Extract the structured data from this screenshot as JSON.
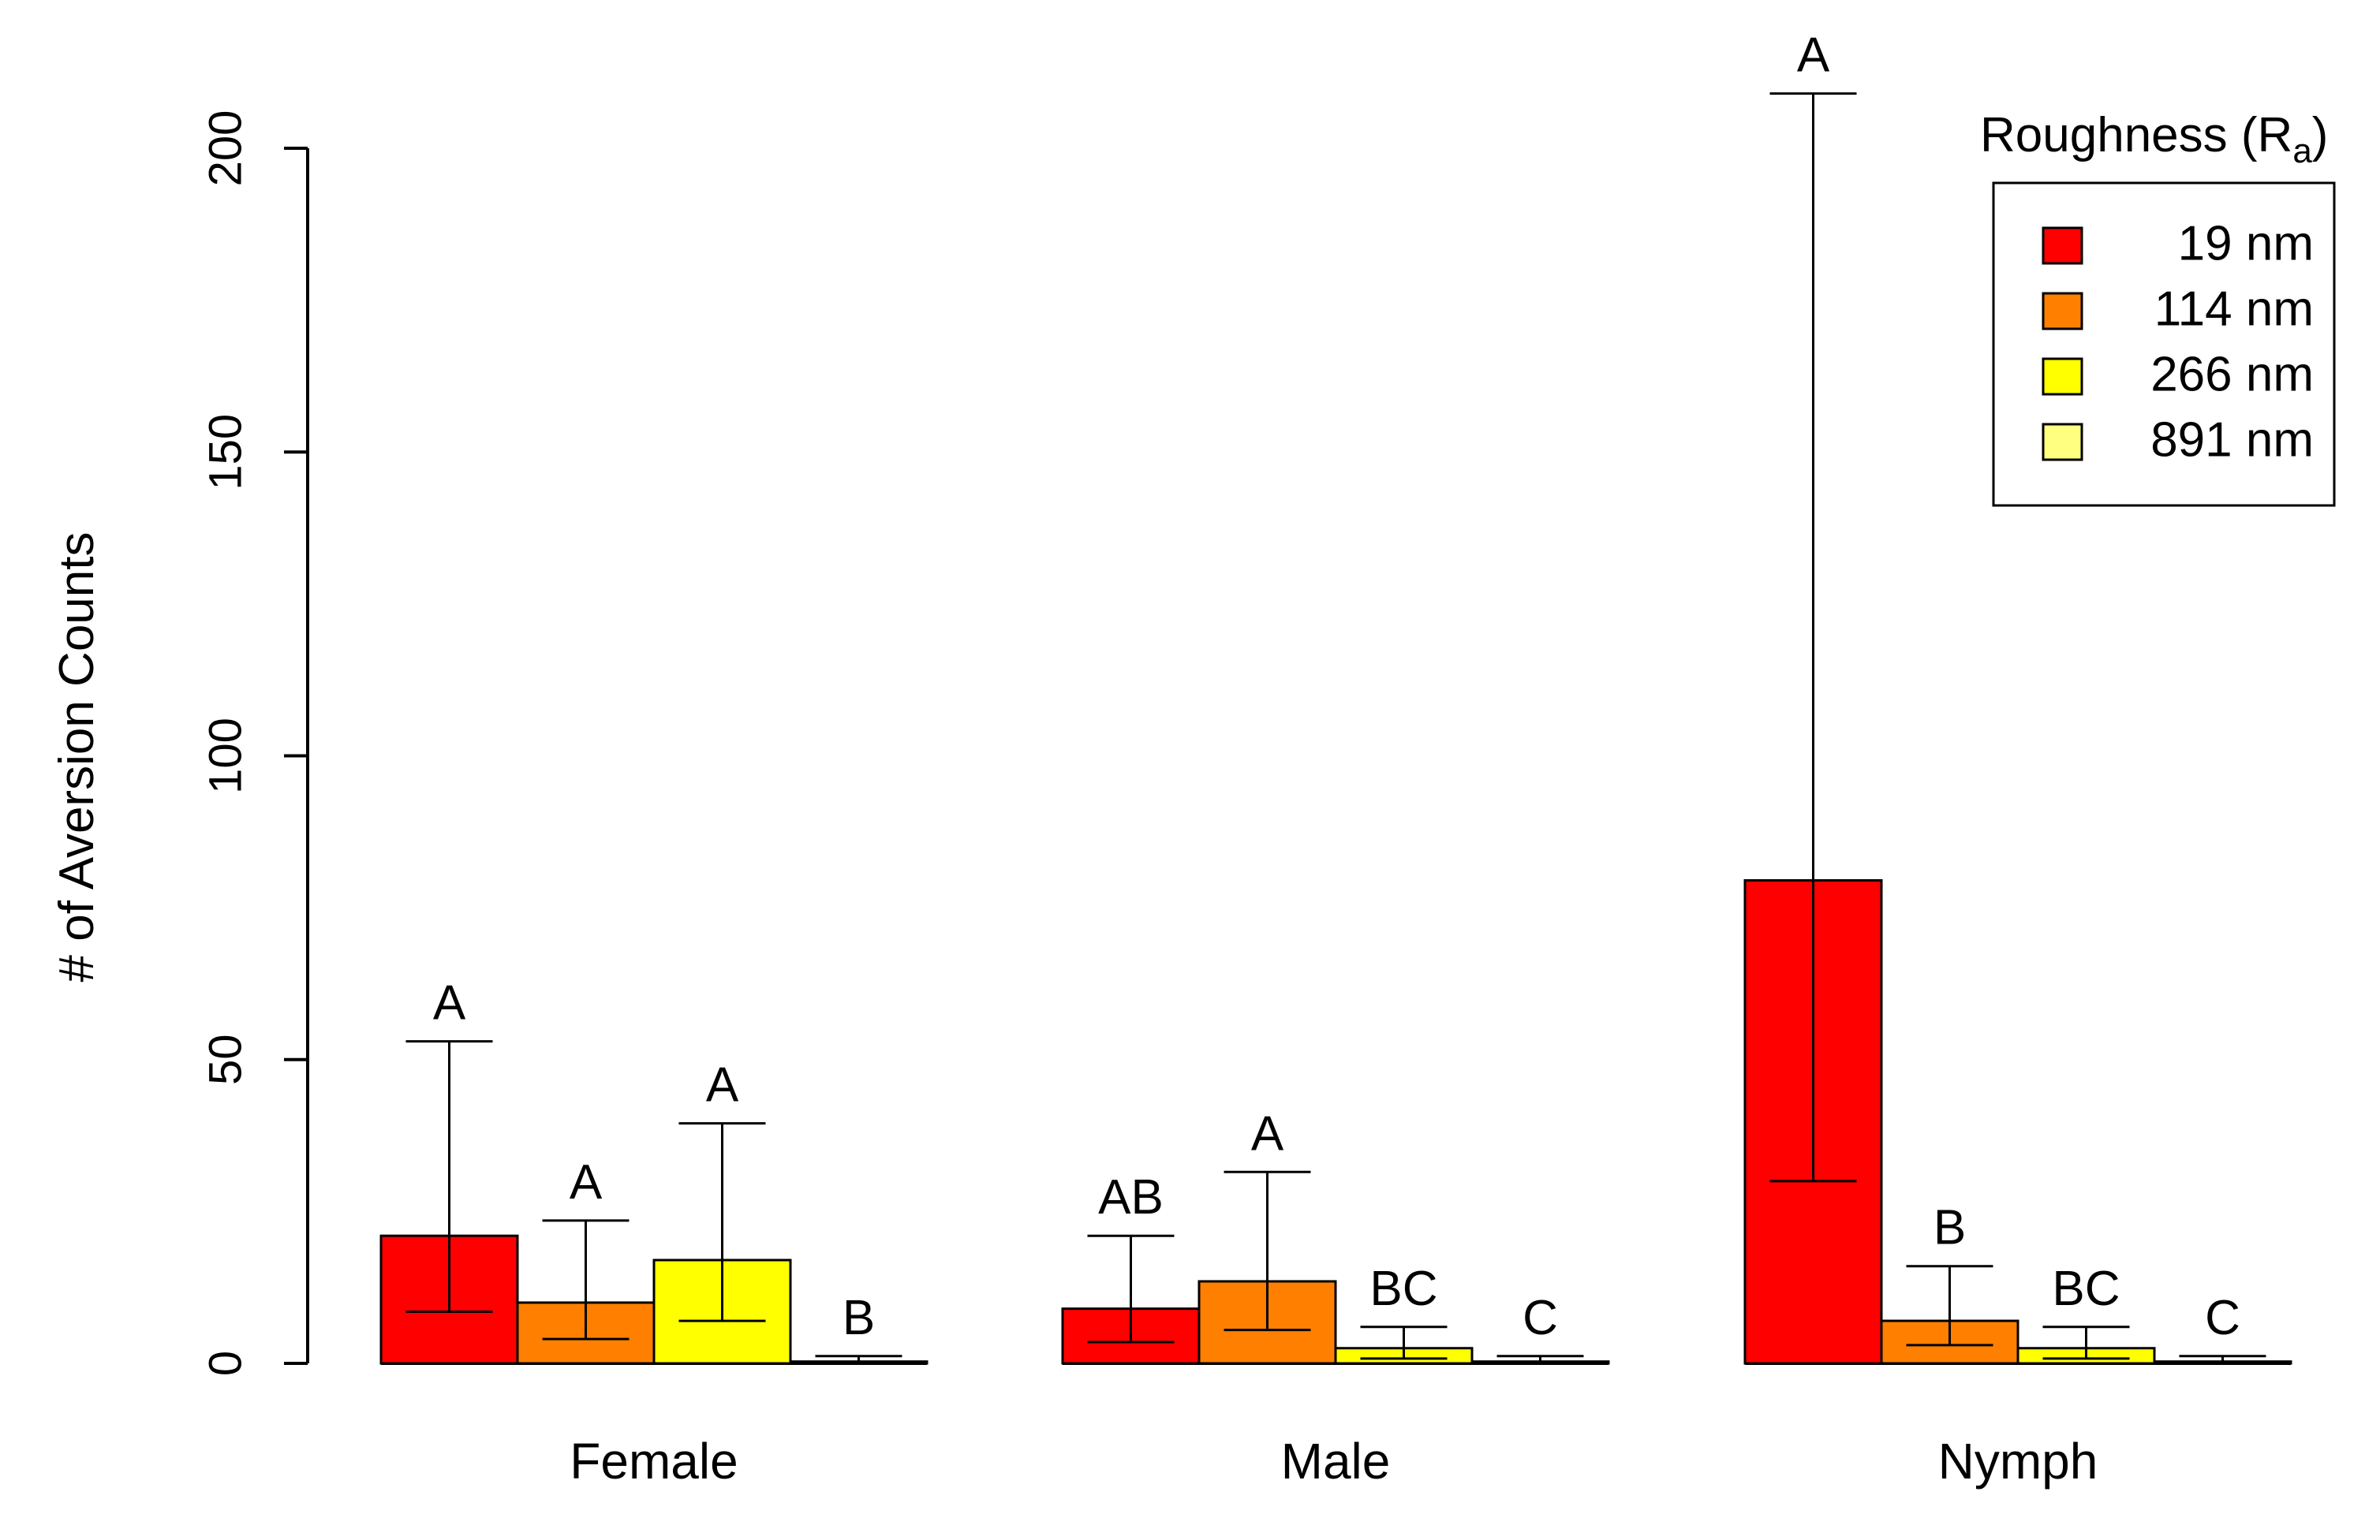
{
  "chart_data": {
    "type": "bar",
    "title": "",
    "xlabel": "",
    "ylabel": "# of Aversion Counts",
    "ylim": [
      0,
      200
    ],
    "yticks": [
      0,
      50,
      100,
      150,
      200
    ],
    "categories": [
      "Female",
      "Male",
      "Nymph"
    ],
    "legend": {
      "title_main": "Roughness (R",
      "title_sub": "a",
      "title_close": ")",
      "position": "top-right"
    },
    "series": [
      {
        "name": "19 nm",
        "color": "#ff0000",
        "values": [
          21,
          9,
          79.5
        ],
        "err_low": [
          8.5,
          3.5,
          30
        ],
        "err_high": [
          53,
          21,
          209
        ],
        "letters": [
          "A",
          "AB",
          "A"
        ]
      },
      {
        "name": "114 nm",
        "color": "#ff7f00",
        "values": [
          10,
          13.5,
          7
        ],
        "err_low": [
          4,
          5.5,
          3
        ],
        "err_high": [
          23.5,
          31.5,
          16
        ],
        "letters": [
          "A",
          "A",
          "B"
        ]
      },
      {
        "name": "266 nm",
        "color": "#ffff00",
        "values": [
          17,
          2.5,
          2.5
        ],
        "err_low": [
          7,
          0.8,
          0.8
        ],
        "err_high": [
          39.5,
          6,
          6
        ],
        "letters": [
          "A",
          "BC",
          "BC"
        ]
      },
      {
        "name": "891 nm",
        "color": "#ffff80",
        "values": [
          0.3,
          0.3,
          0.3
        ],
        "err_low": [
          0,
          0,
          0
        ],
        "err_high": [
          1.2,
          1.2,
          1.2
        ],
        "letters": [
          "B",
          "C",
          "C"
        ]
      }
    ]
  }
}
